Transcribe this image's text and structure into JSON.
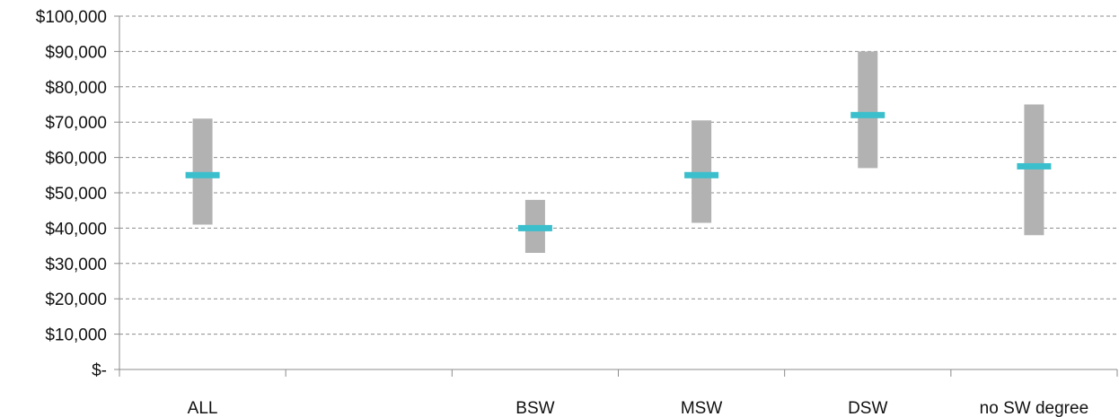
{
  "chart_data": {
    "type": "range",
    "title": "",
    "xlabel": "",
    "ylabel": "",
    "categories": [
      "ALL",
      "",
      "BSW",
      "MSW",
      "DSW",
      "no SW degree"
    ],
    "y_tick_labels": [
      "$-",
      "$10,000",
      "$20,000",
      "$30,000",
      "$40,000",
      "$50,000",
      "$60,000",
      "$70,000",
      "$80,000",
      "$90,000",
      "$100,000"
    ],
    "ylim": [
      0,
      100000
    ],
    "y_step": 10000,
    "grid": true,
    "legend": "none",
    "series": [
      {
        "role": "range_low",
        "values": [
          41000,
          null,
          33000,
          41500,
          57000,
          38000
        ]
      },
      {
        "role": "range_high",
        "values": [
          71000,
          null,
          48000,
          70500,
          90000,
          75000
        ]
      },
      {
        "role": "median",
        "values": [
          55000,
          null,
          40000,
          55000,
          72000,
          57500
        ]
      }
    ],
    "colors": {
      "range": "#b2b2b2",
      "median": "#3cbfcc",
      "grid": "#8c8c8c",
      "text": "#111111"
    }
  }
}
